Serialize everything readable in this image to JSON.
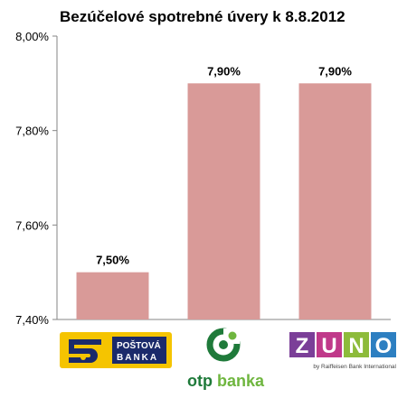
{
  "chart_data": {
    "type": "bar",
    "title": "Bezúčelové spotrebné úvery k 8.8.2012",
    "categories": [
      "POŠTOVÁ BANKA",
      "otpbanka",
      "ZUNO"
    ],
    "values": [
      7.5,
      7.9,
      7.9
    ],
    "data_labels": [
      "7,50%",
      "7,90%",
      "7,90%"
    ],
    "ylim": [
      7.4,
      8.0
    ],
    "yticks": [
      7.4,
      7.6,
      7.8,
      8.0
    ],
    "ytick_labels": [
      "7,40%",
      "7,60%",
      "7,80%",
      "8,00%"
    ],
    "bar_color": "#d99a98",
    "grid": false,
    "legend": "none"
  },
  "logos": {
    "postova": {
      "line1": "POŠTOVÁ",
      "line2": "BANKA",
      "bg": "#f5c400",
      "box": "#1b2a6b"
    },
    "otp": {
      "text_dark": "otp",
      "text_light": "banka",
      "color": "#1f7a3a",
      "light": "#6fb63f"
    },
    "zuno": {
      "letters": [
        "Z",
        "U",
        "N",
        "O"
      ],
      "tagline": "by Raiffeisen Bank International",
      "purple": "#7b3f98",
      "blue": "#2d7fc1",
      "green": "#8dbb3b",
      "magenta": "#c0398a"
    }
  }
}
